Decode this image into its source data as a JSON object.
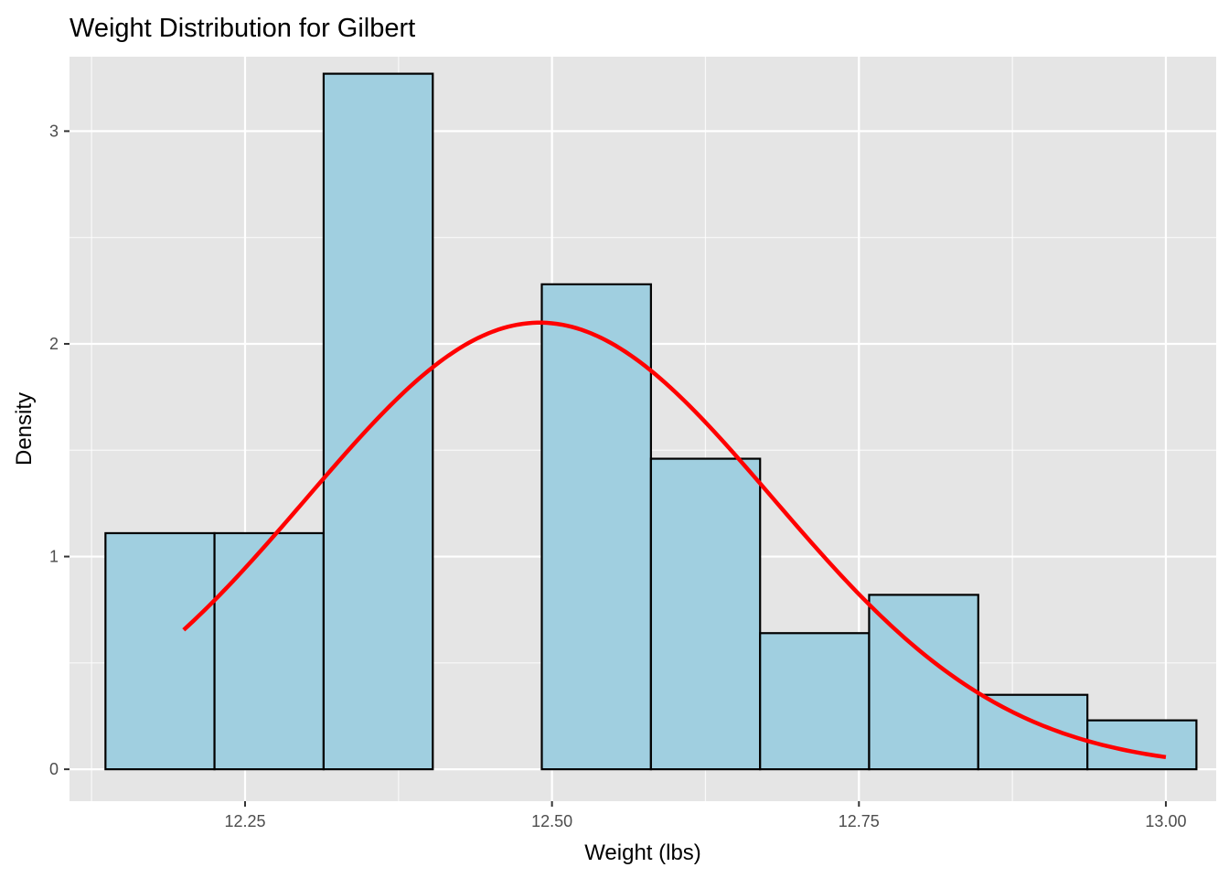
{
  "chart_data": {
    "type": "histogram",
    "title": "Weight Distribution for Gilbert",
    "xlabel": "Weight (lbs)",
    "ylabel": "Density",
    "xlim": [
      12.107,
      13.041
    ],
    "ylim": [
      -0.15,
      3.35
    ],
    "x_ticks": [
      12.25,
      12.5,
      12.75,
      13.0
    ],
    "x_tick_labels": [
      "12.25",
      "12.50",
      "12.75",
      "13.00"
    ],
    "x_minor_ticks": [
      12.125,
      12.375,
      12.625,
      12.875
    ],
    "y_ticks": [
      0,
      1,
      2,
      3
    ],
    "y_tick_labels": [
      "0",
      "1",
      "2",
      "3"
    ],
    "y_minor_ticks": [
      0.5,
      1.5,
      2.5
    ],
    "grid": true,
    "bins": [
      {
        "x0": 12.1363,
        "x1": 12.2251,
        "density": 1.11
      },
      {
        "x0": 12.2251,
        "x1": 12.314,
        "density": 1.11
      },
      {
        "x0": 12.314,
        "x1": 12.4029,
        "density": 3.27
      },
      {
        "x0": 12.4029,
        "x1": 12.4917,
        "density": 0.0
      },
      {
        "x0": 12.4917,
        "x1": 12.5806,
        "density": 2.28
      },
      {
        "x0": 12.5806,
        "x1": 12.6695,
        "density": 1.46
      },
      {
        "x0": 12.6695,
        "x1": 12.7583,
        "density": 0.64
      },
      {
        "x0": 12.7583,
        "x1": 12.8472,
        "density": 0.82
      },
      {
        "x0": 12.8472,
        "x1": 12.9361,
        "density": 0.35
      },
      {
        "x0": 12.9361,
        "x1": 13.0249,
        "density": 0.23
      }
    ],
    "normal_curve": {
      "mean": 12.49,
      "sd": 0.19,
      "x_range": [
        12.2,
        13.0
      ],
      "color": "#ff0000"
    },
    "colors": {
      "panel_background": "#e5e5e5",
      "grid_major": "#ffffff",
      "bar_fill": "#a0cfe0",
      "bar_outline": "#000000"
    }
  }
}
